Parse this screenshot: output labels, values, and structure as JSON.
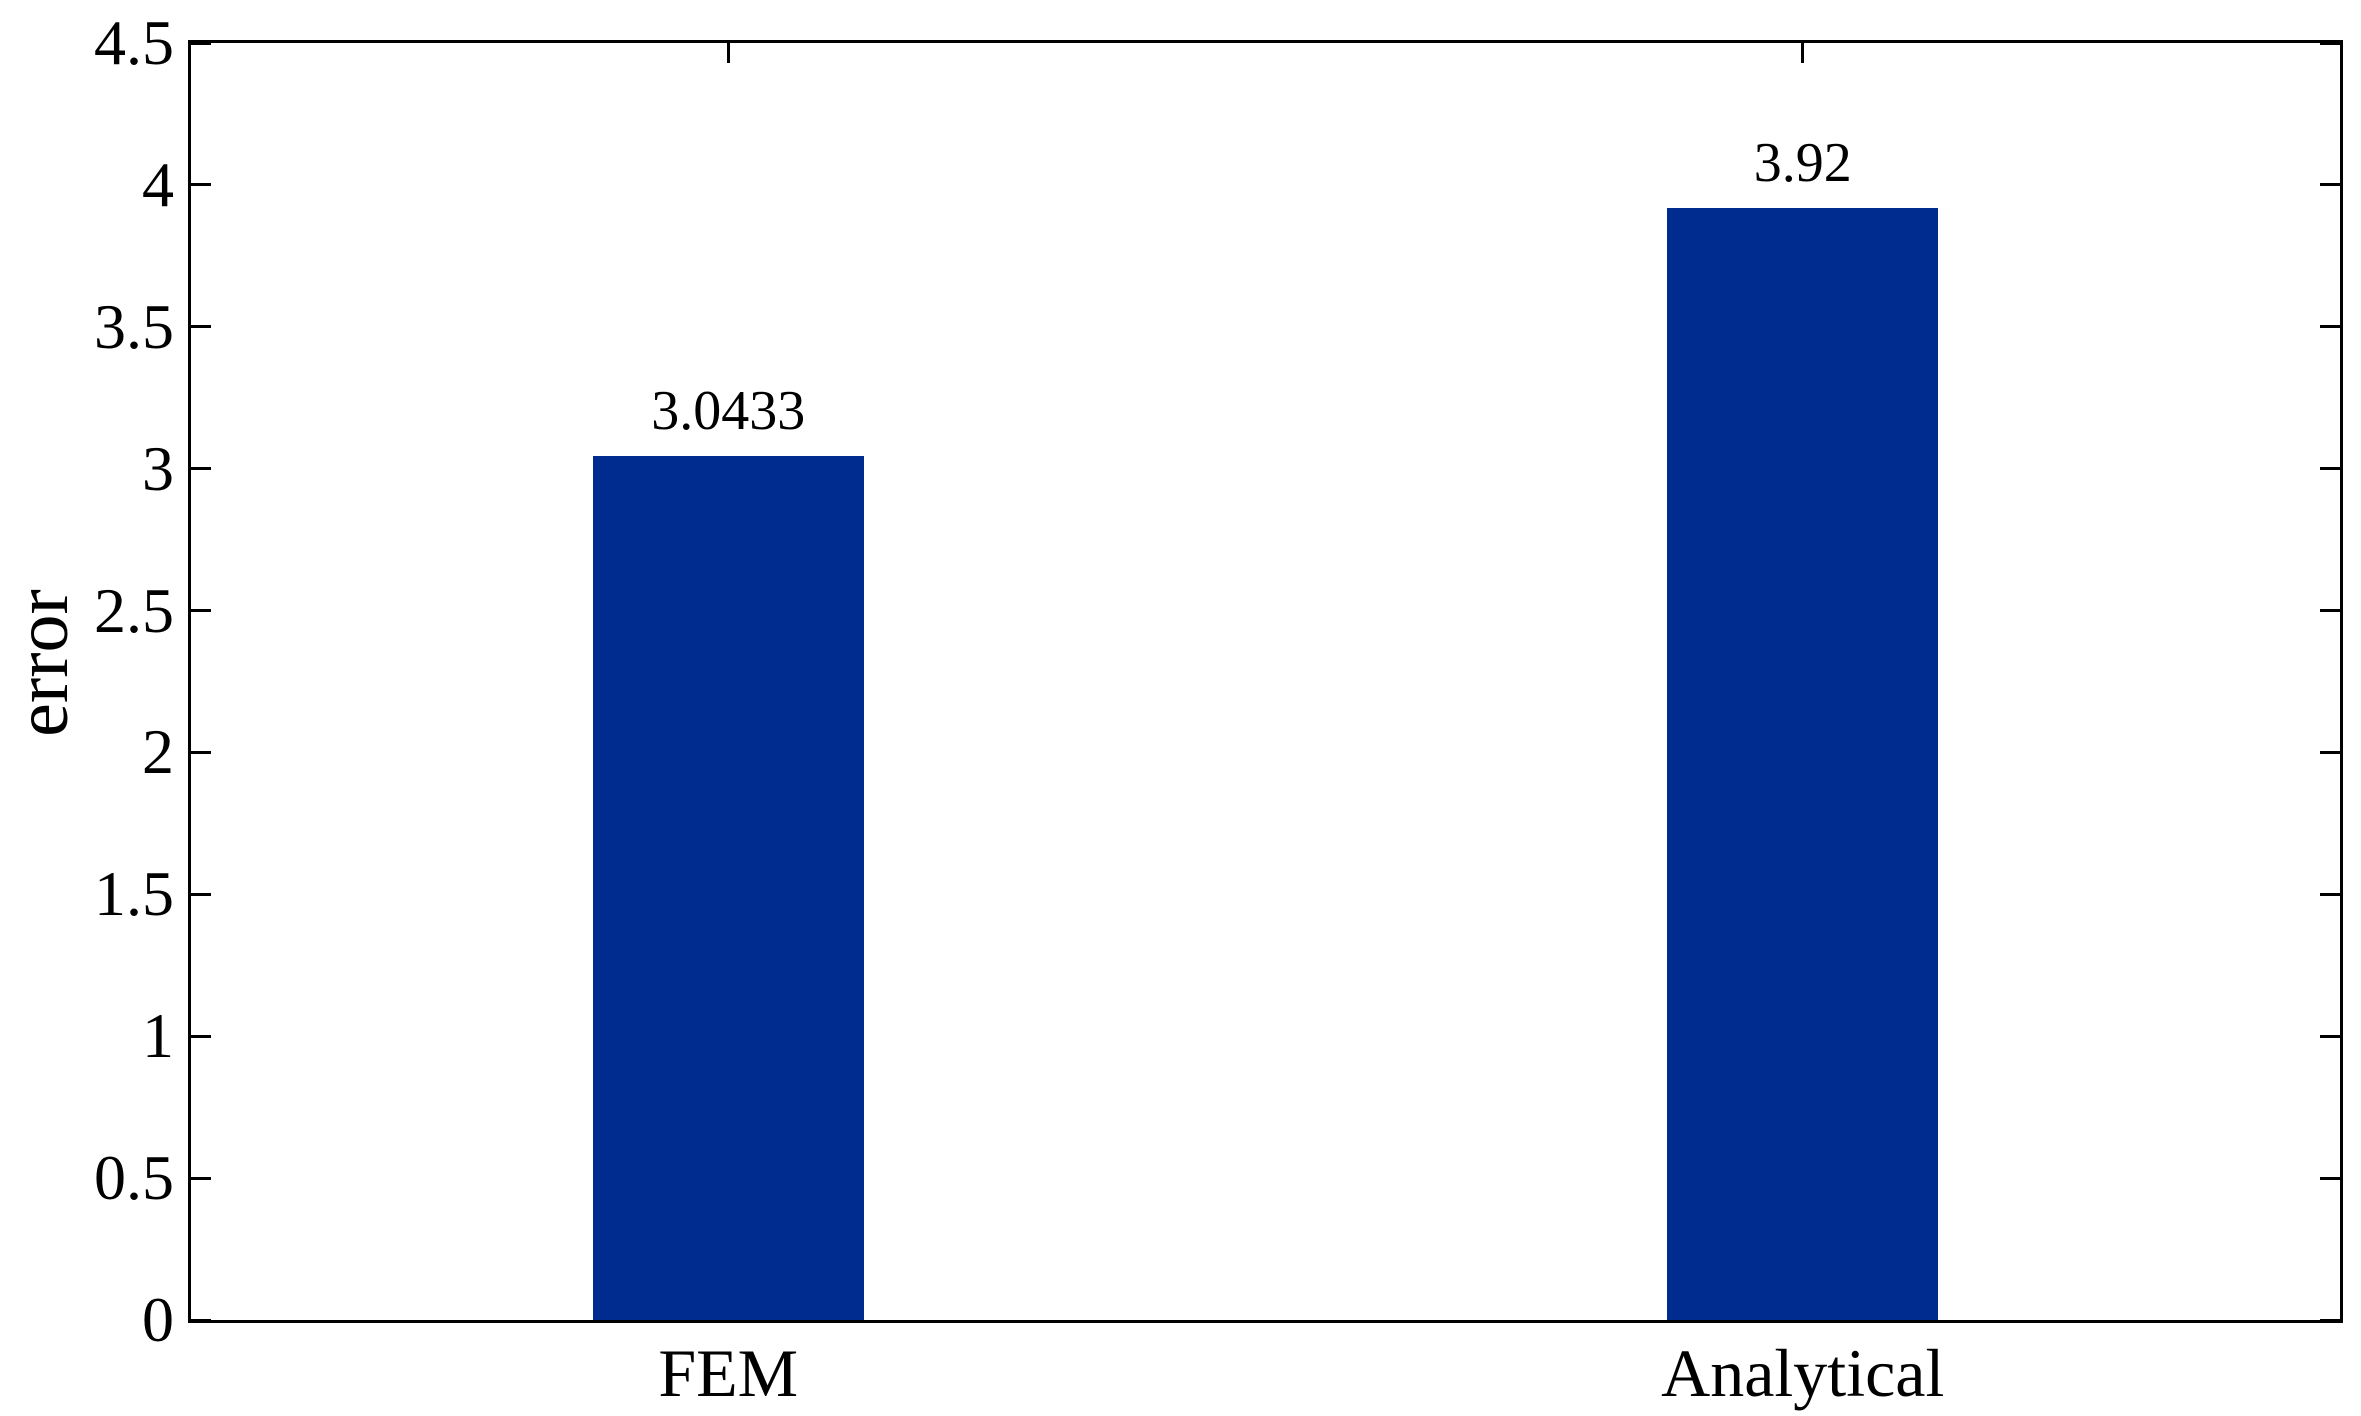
{
  "figure": {
    "background_color": "#ffffff"
  },
  "chart_data": {
    "type": "bar",
    "title": "",
    "categories": [
      "FEM",
      "Analytical"
    ],
    "values": [
      3.0433,
      3.92
    ],
    "value_labels": [
      "3.0433",
      "3.92"
    ],
    "xlabel": "",
    "ylabel": "error",
    "ylim": [
      0,
      4.5
    ],
    "ytick_step": 0.5,
    "ytick_labels": [
      "0",
      "0.5",
      "1",
      "1.5",
      "2",
      "2.5",
      "3",
      "3.5",
      "4",
      "4.5"
    ],
    "grid": false,
    "legend": null,
    "box": true,
    "bar_color": "#012c8f",
    "axis_color": "#000000",
    "text_color": "#000000"
  }
}
